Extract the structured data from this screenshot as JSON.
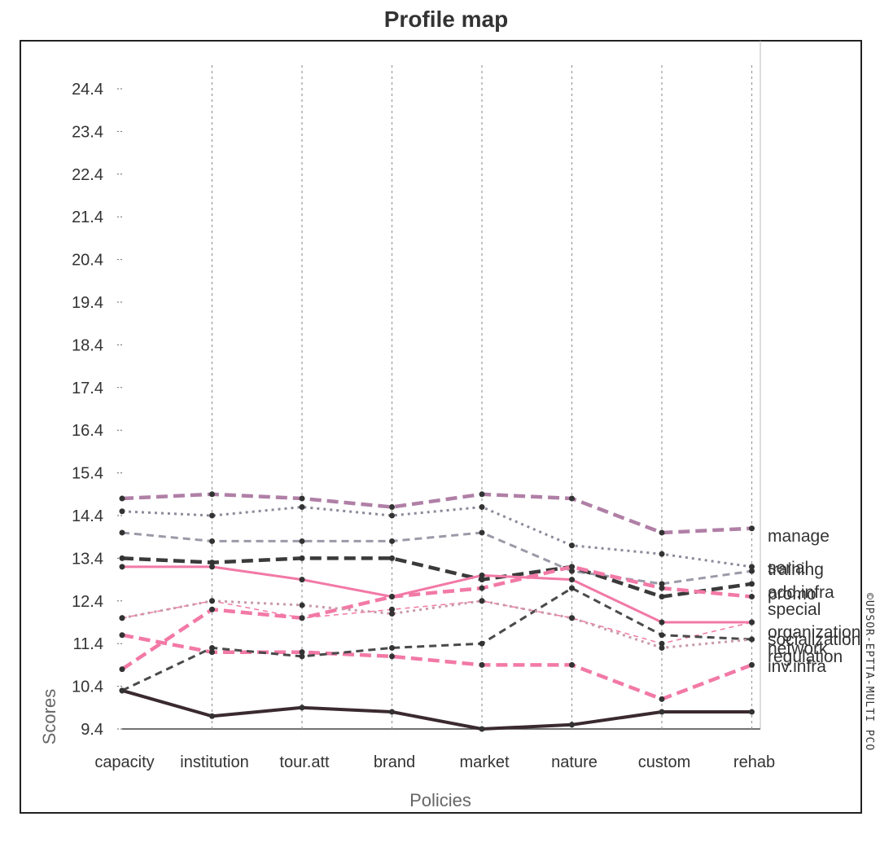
{
  "chart_data": {
    "type": "line",
    "title": "Profile map",
    "xlabel": "Policies",
    "ylabel": "Scores",
    "watermark": "©UPSOR-EPTTA-MULTI PCO",
    "categories": [
      "capacity",
      "institution",
      "tour.att",
      "brand",
      "market",
      "nature",
      "custom",
      "rehab"
    ],
    "ylim": [
      9.4,
      25.4
    ],
    "yticks": [
      "24.4",
      "23.4",
      "22.4",
      "21.4",
      "20.4",
      "19.4",
      "18.4",
      "17.4",
      "16.4",
      "15.4",
      "14.4",
      "13.4",
      "12.4",
      "11.4",
      "10.4",
      "9.4"
    ],
    "grid": "vertical-dashed",
    "legend": "line-end labels (right)",
    "series": [
      {
        "name": "manage",
        "values": [
          14.8,
          14.9,
          14.8,
          14.6,
          14.9,
          14.8,
          14.0,
          14.1
        ],
        "color": "#b07fa6",
        "style": "dash-heavy"
      },
      {
        "name": "serial",
        "values": [
          14.5,
          14.4,
          14.6,
          14.4,
          14.6,
          13.7,
          13.5,
          13.2
        ],
        "color": "#8a8a9a",
        "style": "dot"
      },
      {
        "name": "training",
        "values": [
          14.0,
          13.8,
          13.8,
          13.8,
          14.0,
          13.1,
          12.8,
          13.1
        ],
        "color": "#9a9aa8",
        "style": "dash"
      },
      {
        "name": "add.infra",
        "values": [
          13.4,
          13.3,
          13.4,
          13.4,
          12.9,
          13.2,
          12.5,
          12.8
        ],
        "color": "#3a3a3a",
        "style": "dash-heavy"
      },
      {
        "name": "promo",
        "values": [
          13.2,
          13.2,
          12.9,
          12.5,
          13.0,
          12.9,
          11.9,
          11.9
        ],
        "color": "#f279a6",
        "style": "solid"
      },
      {
        "name": "special",
        "values": [
          10.8,
          12.2,
          12.0,
          12.5,
          12.7,
          13.2,
          12.7,
          12.5
        ],
        "color": "#f279a6",
        "style": "dash-heavy"
      },
      {
        "name": "organization",
        "values": [
          12.0,
          12.4,
          12.0,
          12.2,
          12.4,
          12.0,
          11.4,
          11.9
        ],
        "color": "#f279a6",
        "style": "dash-thin"
      },
      {
        "name": "network",
        "values": [
          11.6,
          11.2,
          11.2,
          11.1,
          10.9,
          10.9,
          10.1,
          10.9
        ],
        "color": "#f279a6",
        "style": "dash-heavy"
      },
      {
        "name": "socialization",
        "values": [
          10.3,
          11.3,
          11.1,
          11.3,
          11.4,
          12.7,
          11.6,
          11.5
        ],
        "color": "#4a4a4a",
        "style": "dash"
      },
      {
        "name": "regulation",
        "values": [
          12.0,
          12.4,
          12.3,
          12.1,
          12.4,
          12.0,
          11.3,
          11.5
        ],
        "color": "#c99aa8",
        "style": "dot"
      },
      {
        "name": "inv.infra",
        "values": [
          10.3,
          9.7,
          9.9,
          9.8,
          9.4,
          9.5,
          9.8,
          9.8
        ],
        "color": "#3a2a30",
        "style": "solid-heavy"
      }
    ],
    "series_labels": [
      "manage",
      "serial",
      "training",
      "add.infra",
      "promo",
      "special",
      "organization",
      "network",
      "socialization",
      "regulation",
      "inv.infra"
    ]
  }
}
